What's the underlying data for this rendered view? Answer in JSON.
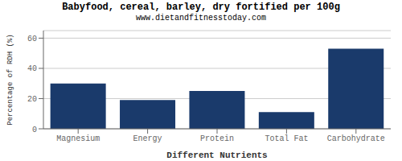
{
  "chart_data": {
    "type": "bar",
    "title": "Babyfood, cereal, barley, dry fortified per 100g",
    "subtitle": "www.dietandfitnesstoday.com",
    "categories": [
      "Magnesium",
      "Energy",
      "Protein",
      "Total Fat",
      "Carbohydrate"
    ],
    "values": [
      30,
      19,
      25,
      11,
      53
    ],
    "color": "#1a3a6b",
    "xlabel": "Different Nutrients",
    "ylabel": "Percentage of RDH (%)",
    "ylim": [
      0,
      65
    ],
    "yticks": [
      0,
      20,
      40,
      60
    ],
    "grid": true
  }
}
